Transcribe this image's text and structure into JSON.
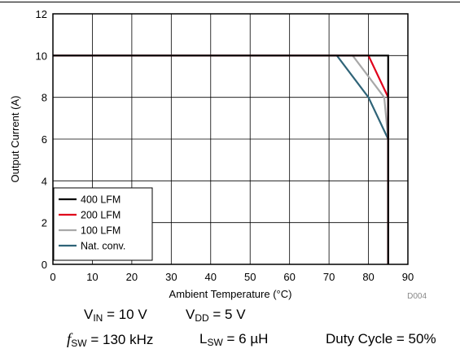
{
  "chart_data": {
    "type": "line",
    "title": "",
    "xlabel": "Ambient Temperature (°C)",
    "ylabel": "Output Current (A)",
    "xlim": [
      0,
      90
    ],
    "ylim": [
      0,
      12
    ],
    "xticks": [
      0,
      10,
      20,
      30,
      40,
      50,
      60,
      70,
      80,
      90
    ],
    "yticks": [
      0,
      2,
      4,
      6,
      8,
      10,
      12
    ],
    "grid": true,
    "legend_position": "bottom-left",
    "figure_code": "D004",
    "series": [
      {
        "name": "400 LFM",
        "color": "#000000",
        "x": [
          0,
          85,
          85
        ],
        "y": [
          10,
          10,
          0
        ]
      },
      {
        "name": "200 LFM",
        "color": "#e0001b",
        "x": [
          0,
          80,
          85,
          85,
          85
        ],
        "y": [
          10,
          10,
          8,
          6,
          0
        ]
      },
      {
        "name": "100 LFM",
        "color": "#a8a8a8",
        "x": [
          0,
          76,
          84,
          85,
          85
        ],
        "y": [
          10,
          10,
          8,
          6,
          0
        ]
      },
      {
        "name": "Nat. conv.",
        "color": "#2f6478",
        "x": [
          0,
          72,
          80,
          85,
          85
        ],
        "y": [
          10,
          10,
          8,
          6,
          0
        ]
      }
    ]
  },
  "conditions": {
    "vin_sym": "V",
    "vin_sub": "IN",
    "vin_val": " = 10 V",
    "vdd_sym": "V",
    "vdd_sub": "DD",
    "vdd_val": " = 5 V",
    "fsw_sym": "f",
    "fsw_sub": "SW",
    "fsw_val": " = 130 kHz",
    "lsw_sym": "L",
    "lsw_sub": "SW",
    "lsw_val": " = 6 µH",
    "duty": "Duty Cycle = 50%"
  }
}
